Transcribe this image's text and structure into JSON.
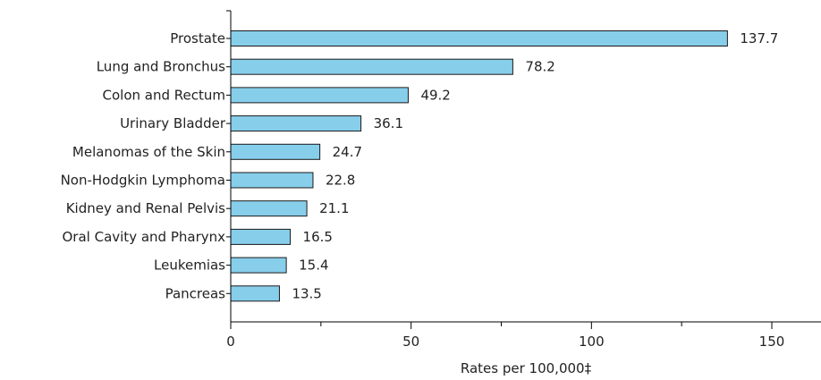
{
  "chart_data": {
    "type": "bar",
    "orientation": "horizontal",
    "categories": [
      "Prostate",
      "Lung and Bronchus",
      "Colon and Rectum",
      "Urinary Bladder",
      "Melanomas of the Skin",
      "Non-Hodgkin Lymphoma",
      "Kidney and Renal Pelvis",
      "Oral Cavity and Pharynx",
      "Leukemias",
      "Pancreas"
    ],
    "values": [
      137.7,
      78.2,
      49.2,
      36.1,
      24.7,
      22.8,
      21.1,
      16.5,
      15.4,
      13.5
    ],
    "value_labels": [
      "137.7",
      "78.2",
      "49.2",
      "36.1",
      "24.7",
      "22.8",
      "21.1",
      "16.5",
      "15.4",
      "13.5"
    ],
    "title": "",
    "xlabel": "Rates per 100,000‡",
    "ylabel": "",
    "xlim": [
      0,
      165
    ],
    "xticks": [
      0,
      50,
      100,
      150
    ],
    "xtick_labels": [
      "0",
      "50",
      "100",
      "150"
    ],
    "grid": false,
    "legend": "none",
    "bar_color": "#87ceeb",
    "bar_edge_color": "#1a1a1a",
    "axis_color": "#000000"
  }
}
